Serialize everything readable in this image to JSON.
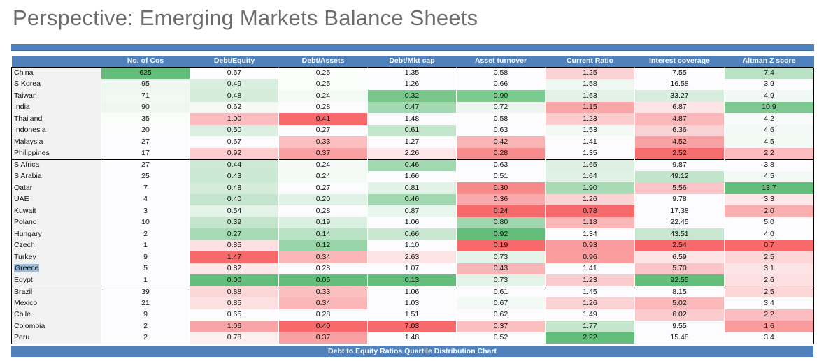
{
  "title": "Perspective: Emerging Markets Balance Sheets",
  "footer_label": "Debt to Equity Ratios Quartile Distribution Chart",
  "columns": [
    "",
    "No. of Cos",
    "Debt/Equity",
    "Debt/Assets",
    "Debt/Mkt cap",
    "Asset turnover",
    "Current Ratio",
    "Interest coverage",
    "Altman Z score"
  ],
  "colors": {
    "header_blue": "#4f81bd",
    "good_green": "#63be7b",
    "bad_red": "#f8696b"
  },
  "groups": [
    {
      "rows": [
        {
          "country": "China",
          "cells": [
            {
              "v": "625",
              "bg": "#63be7b"
            },
            {
              "v": "0.67",
              "bg": "#fcfcff"
            },
            {
              "v": "0.25",
              "bg": "#fbfdfb"
            },
            {
              "v": "1.35",
              "bg": "#fcfcff"
            },
            {
              "v": "0.58",
              "bg": "#fcfcff"
            },
            {
              "v": "1.25",
              "bg": "#fbd2d3"
            },
            {
              "v": "7.55",
              "bg": "#fcfcff"
            },
            {
              "v": "7.4",
              "bg": "#b9e2c4"
            }
          ]
        },
        {
          "country": "S Korea",
          "cells": [
            {
              "v": "95",
              "bg": "#eef7f1"
            },
            {
              "v": "0.49",
              "bg": "#d8eedf"
            },
            {
              "v": "0.25",
              "bg": "#fbfdfb"
            },
            {
              "v": "1.26",
              "bg": "#fcfcff"
            },
            {
              "v": "0.66",
              "bg": "#fcfcff"
            },
            {
              "v": "1.58",
              "bg": "#eff8f2"
            },
            {
              "v": "16.58",
              "bg": "#fcfcff"
            },
            {
              "v": "3.9",
              "bg": "#fcfcff"
            }
          ]
        },
        {
          "country": "Taiwan",
          "cells": [
            {
              "v": "71",
              "bg": "#f2f9f4"
            },
            {
              "v": "0.48",
              "bg": "#d5ecdb"
            },
            {
              "v": "0.24",
              "bg": "#f4faf6"
            },
            {
              "v": "0.32",
              "bg": "#79c78d"
            },
            {
              "v": "0.90",
              "bg": "#7acb8e"
            },
            {
              "v": "1.63",
              "bg": "#e2f2e7"
            },
            {
              "v": "33.27",
              "bg": "#d7eede"
            },
            {
              "v": "4.9",
              "bg": "#eff8f2"
            }
          ]
        },
        {
          "country": "India",
          "cells": [
            {
              "v": "90",
              "bg": "#eef7f1"
            },
            {
              "v": "0.62",
              "bg": "#f5faf7"
            },
            {
              "v": "0.28",
              "bg": "#fcfcff"
            },
            {
              "v": "0.47",
              "bg": "#a3d9b1"
            },
            {
              "v": "0.72",
              "bg": "#ecf6ef"
            },
            {
              "v": "1.15",
              "bg": "#f9a6a8"
            },
            {
              "v": "6.87",
              "bg": "#fde4e5"
            },
            {
              "v": "10.9",
              "bg": "#7fc993"
            }
          ]
        },
        {
          "country": "Thailand",
          "cells": [
            {
              "v": "35",
              "bg": "#fbfdfb"
            },
            {
              "v": "1.00",
              "bg": "#fabcbe"
            },
            {
              "v": "0.41",
              "bg": "#f8696b"
            },
            {
              "v": "1.48",
              "bg": "#fcfcff"
            },
            {
              "v": "0.58",
              "bg": "#fcfcff"
            },
            {
              "v": "1.23",
              "bg": "#fbcccd"
            },
            {
              "v": "4.87",
              "bg": "#fab8ba"
            },
            {
              "v": "4.2",
              "bg": "#f8fbf9"
            }
          ]
        },
        {
          "country": "Indonesia",
          "cells": [
            {
              "v": "20",
              "bg": "#fcfcff"
            },
            {
              "v": "0.50",
              "bg": "#dbefe1"
            },
            {
              "v": "0.27",
              "bg": "#fcfcff"
            },
            {
              "v": "0.61",
              "bg": "#c2e5cb"
            },
            {
              "v": "0.63",
              "bg": "#fcfcff"
            },
            {
              "v": "1.53",
              "bg": "#f3f9f5"
            },
            {
              "v": "6.36",
              "bg": "#fbd2d3"
            },
            {
              "v": "4.6",
              "bg": "#f2f9f4"
            }
          ]
        },
        {
          "country": "Malaysia",
          "cells": [
            {
              "v": "27",
              "bg": "#fcfcff"
            },
            {
              "v": "0.67",
              "bg": "#fcfcff"
            },
            {
              "v": "0.33",
              "bg": "#fcbfc0"
            },
            {
              "v": "1.27",
              "bg": "#fcfcff"
            },
            {
              "v": "0.42",
              "bg": "#f9b4b5"
            },
            {
              "v": "1.41",
              "bg": "#fcfcff"
            },
            {
              "v": "4.52",
              "bg": "#f9a2a4"
            },
            {
              "v": "4.5",
              "bg": "#f3f9f5"
            }
          ]
        },
        {
          "country": "Philippines",
          "cells": [
            {
              "v": "17",
              "bg": "#fcfcff"
            },
            {
              "v": "0.92",
              "bg": "#fbcdcf"
            },
            {
              "v": "0.37",
              "bg": "#f9a0a2"
            },
            {
              "v": "2.26",
              "bg": "#fde7e8"
            },
            {
              "v": "0.28",
              "bg": "#f78c8e"
            },
            {
              "v": "1.35",
              "bg": "#fcfcff"
            },
            {
              "v": "2.52",
              "bg": "#f66d70"
            },
            {
              "v": "2.2",
              "bg": "#fabcbe"
            }
          ]
        }
      ]
    },
    {
      "rows": [
        {
          "country": "S Africa",
          "cells": [
            {
              "v": "27",
              "bg": "#fcfcff"
            },
            {
              "v": "0.44",
              "bg": "#cde9d5"
            },
            {
              "v": "0.24",
              "bg": "#f4faf6"
            },
            {
              "v": "0.46",
              "bg": "#a2d8b0"
            },
            {
              "v": "0.63",
              "bg": "#fcfcff"
            },
            {
              "v": "1.65",
              "bg": "#def0e4"
            },
            {
              "v": "9.87",
              "bg": "#fcfcff"
            },
            {
              "v": "3.8",
              "bg": "#fcfcff"
            }
          ]
        },
        {
          "country": "S Arabia",
          "cells": [
            {
              "v": "25",
              "bg": "#fcfcff"
            },
            {
              "v": "0.43",
              "bg": "#cae8d3"
            },
            {
              "v": "0.24",
              "bg": "#f4faf6"
            },
            {
              "v": "1.66",
              "bg": "#fcfcff"
            },
            {
              "v": "0.51",
              "bg": "#fcfcff"
            },
            {
              "v": "1.64",
              "bg": "#e0f1e5"
            },
            {
              "v": "49.12",
              "bg": "#c1e4ca"
            },
            {
              "v": "4.5",
              "bg": "#f3f9f5"
            }
          ]
        },
        {
          "country": "Qatar",
          "cells": [
            {
              "v": "7",
              "bg": "#fcfcff"
            },
            {
              "v": "0.48",
              "bg": "#d5ecdb"
            },
            {
              "v": "0.27",
              "bg": "#fcfcff"
            },
            {
              "v": "0.81",
              "bg": "#e2f2e7"
            },
            {
              "v": "0.30",
              "bg": "#f8898b"
            },
            {
              "v": "1.90",
              "bg": "#a7dab5"
            },
            {
              "v": "5.56",
              "bg": "#fbc4c6"
            },
            {
              "v": "13.7",
              "bg": "#63be7b"
            }
          ]
        },
        {
          "country": "UAE",
          "cells": [
            {
              "v": "4",
              "bg": "#fcfcff"
            },
            {
              "v": "0.40",
              "bg": "#c4e5cd"
            },
            {
              "v": "0.20",
              "bg": "#dff0e4"
            },
            {
              "v": "0.46",
              "bg": "#a2d8b0"
            },
            {
              "v": "0.36",
              "bg": "#f9a9ab"
            },
            {
              "v": "1.26",
              "bg": "#fbd2d3"
            },
            {
              "v": "9.78",
              "bg": "#fcfcff"
            },
            {
              "v": "3.3",
              "bg": "#fde7e8"
            }
          ]
        },
        {
          "country": "Kuwait",
          "cells": [
            {
              "v": "3",
              "bg": "#fcfcff"
            },
            {
              "v": "0.54",
              "bg": "#e3f3e8"
            },
            {
              "v": "0.28",
              "bg": "#fcfcff"
            },
            {
              "v": "0.87",
              "bg": "#e8f5ec"
            },
            {
              "v": "0.24",
              "bg": "#f8696b"
            },
            {
              "v": "0.78",
              "bg": "#f8696b"
            },
            {
              "v": "17.38",
              "bg": "#fcfcff"
            },
            {
              "v": "2.0",
              "bg": "#f9aeb0"
            }
          ]
        },
        {
          "country": "Poland",
          "cells": [
            {
              "v": "10",
              "bg": "#fcfcff"
            },
            {
              "v": "0.39",
              "bg": "#c2e5cb"
            },
            {
              "v": "0.19",
              "bg": "#d9efdf"
            },
            {
              "v": "1.06",
              "bg": "#fcfcff"
            },
            {
              "v": "0.80",
              "bg": "#a0d7ae"
            },
            {
              "v": "1.18",
              "bg": "#fbb6b8"
            },
            {
              "v": "22.45",
              "bg": "#fcfcff"
            },
            {
              "v": "5.0",
              "bg": "#fcfcff"
            }
          ]
        },
        {
          "country": "Hungary",
          "cells": [
            {
              "v": "2",
              "bg": "#fcfcff"
            },
            {
              "v": "0.27",
              "bg": "#a6dab4"
            },
            {
              "v": "0.14",
              "bg": "#b9e1c4"
            },
            {
              "v": "0.66",
              "bg": "#c9e7d1"
            },
            {
              "v": "0.92",
              "bg": "#63be7b"
            },
            {
              "v": "1.34",
              "bg": "#fcfcff"
            },
            {
              "v": "43.51",
              "bg": "#c7e7d0"
            },
            {
              "v": "4.0",
              "bg": "#fcfcff"
            }
          ]
        },
        {
          "country": "Czech",
          "cells": [
            {
              "v": "1",
              "bg": "#fcfcff"
            },
            {
              "v": "0.85",
              "bg": "#fde1e2"
            },
            {
              "v": "0.12",
              "bg": "#99d4a8"
            },
            {
              "v": "1.10",
              "bg": "#fcfcff"
            },
            {
              "v": "0.19",
              "bg": "#f8696b"
            },
            {
              "v": "0.93",
              "bg": "#f99a9c"
            },
            {
              "v": "2.54",
              "bg": "#f8696b"
            },
            {
              "v": "0.7",
              "bg": "#f8696b"
            }
          ]
        },
        {
          "country": "Turkey",
          "cells": [
            {
              "v": "9",
              "bg": "#fcfcff"
            },
            {
              "v": "1.47",
              "bg": "#f8696b"
            },
            {
              "v": "0.34",
              "bg": "#fbb6b8"
            },
            {
              "v": "2.63",
              "bg": "#fde4e5"
            },
            {
              "v": "0.73",
              "bg": "#e3f3e8"
            },
            {
              "v": "0.96",
              "bg": "#f99d9f"
            },
            {
              "v": "6.59",
              "bg": "#fde4e5"
            },
            {
              "v": "2.5",
              "bg": "#fcd6d7"
            }
          ]
        },
        {
          "country": "Greece",
          "highlight": true,
          "cells": [
            {
              "v": "5",
              "bg": "#fcfcff"
            },
            {
              "v": "0.82",
              "bg": "#fde7e8"
            },
            {
              "v": "0.28",
              "bg": "#fcfcff"
            },
            {
              "v": "1.07",
              "bg": "#fcfcff"
            },
            {
              "v": "0.43",
              "bg": "#f9b6b8"
            },
            {
              "v": "1.41",
              "bg": "#fcfcff"
            },
            {
              "v": "5.70",
              "bg": "#fbc4c6"
            },
            {
              "v": "3.1",
              "bg": "#fde4e5"
            }
          ]
        },
        {
          "country": "Egypt",
          "cells": [
            {
              "v": "1",
              "bg": "#fcfcff"
            },
            {
              "v": "0.00",
              "bg": "#63be7b"
            },
            {
              "v": "0.05",
              "bg": "#63be7b"
            },
            {
              "v": "0.13",
              "bg": "#63be7b"
            },
            {
              "v": "0.73",
              "bg": "#e3f3e8"
            },
            {
              "v": "1.23",
              "bg": "#fbcccd"
            },
            {
              "v": "92.55",
              "bg": "#63be7b"
            },
            {
              "v": "2.6",
              "bg": "#fde1e2"
            }
          ]
        }
      ]
    },
    {
      "rows": [
        {
          "country": "Brazil",
          "cells": [
            {
              "v": "39",
              "bg": "#fcfcff"
            },
            {
              "v": "0.88",
              "bg": "#fcd7d8"
            },
            {
              "v": "0.33",
              "bg": "#fcbfc0"
            },
            {
              "v": "1.06",
              "bg": "#fcfcff"
            },
            {
              "v": "0.61",
              "bg": "#fcfcff"
            },
            {
              "v": "1.45",
              "bg": "#fcfcff"
            },
            {
              "v": "8.15",
              "bg": "#fcfcff"
            },
            {
              "v": "2.5",
              "bg": "#fcd6d7"
            }
          ]
        },
        {
          "country": "Mexico",
          "cells": [
            {
              "v": "21",
              "bg": "#fcfcff"
            },
            {
              "v": "0.85",
              "bg": "#fde1e2"
            },
            {
              "v": "0.34",
              "bg": "#fbb6b8"
            },
            {
              "v": "1.03",
              "bg": "#fcfcff"
            },
            {
              "v": "0.67",
              "bg": "#f3f9f5"
            },
            {
              "v": "1.26",
              "bg": "#fbd2d3"
            },
            {
              "v": "5.02",
              "bg": "#fab8ba"
            },
            {
              "v": "3.4",
              "bg": "#fcfcff"
            }
          ]
        },
        {
          "country": "Chile",
          "cells": [
            {
              "v": "9",
              "bg": "#fcfcff"
            },
            {
              "v": "0.65",
              "bg": "#fcfcff"
            },
            {
              "v": "0.28",
              "bg": "#fcfcff"
            },
            {
              "v": "1.51",
              "bg": "#fcfcff"
            },
            {
              "v": "0.62",
              "bg": "#fcfcff"
            },
            {
              "v": "1.49",
              "bg": "#fcfcff"
            },
            {
              "v": "6.02",
              "bg": "#fbcccd"
            },
            {
              "v": "2.2",
              "bg": "#fabcbe"
            }
          ]
        },
        {
          "country": "Colombia",
          "cells": [
            {
              "v": "2",
              "bg": "#fcfcff"
            },
            {
              "v": "1.06",
              "bg": "#f9a4a6"
            },
            {
              "v": "0.40",
              "bg": "#f8696b"
            },
            {
              "v": "7.03",
              "bg": "#f8696b"
            },
            {
              "v": "0.37",
              "bg": "#fbbfc0"
            },
            {
              "v": "1.77",
              "bg": "#c3e5cc"
            },
            {
              "v": "9.55",
              "bg": "#fcfcff"
            },
            {
              "v": "1.6",
              "bg": "#f99a9c"
            }
          ]
        },
        {
          "country": "Peru",
          "cells": [
            {
              "v": "2",
              "bg": "#fcfcff"
            },
            {
              "v": "0.78",
              "bg": "#fdeeef"
            },
            {
              "v": "0.37",
              "bg": "#f9a0a2"
            },
            {
              "v": "1.48",
              "bg": "#fcfcff"
            },
            {
              "v": "0.52",
              "bg": "#fcfcff"
            },
            {
              "v": "2.22",
              "bg": "#63be7b"
            },
            {
              "v": "15.48",
              "bg": "#fcfcff"
            },
            {
              "v": "3.4",
              "bg": "#fcfcff"
            }
          ]
        }
      ]
    }
  ]
}
